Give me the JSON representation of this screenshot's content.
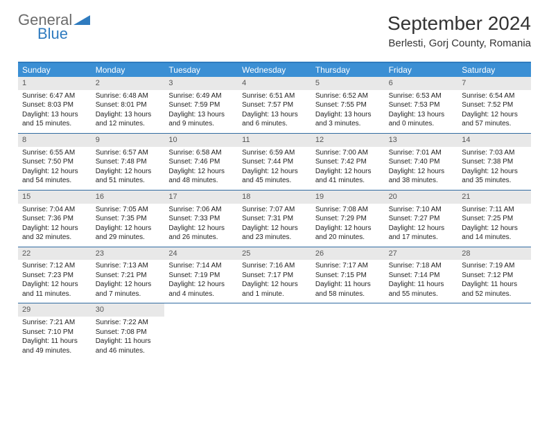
{
  "logo": {
    "general": "General",
    "blue": "Blue",
    "tri_color": "#2f7bbf"
  },
  "title": "September 2024",
  "location": "Berlesti, Gorj County, Romania",
  "colors": {
    "header_bar": "#3b8fd4",
    "top_border": "#2f7bbf",
    "row_border": "#2f6aa0",
    "daynum_bg": "#e8e8e8",
    "text": "#222222"
  },
  "day_names": [
    "Sunday",
    "Monday",
    "Tuesday",
    "Wednesday",
    "Thursday",
    "Friday",
    "Saturday"
  ],
  "weeks": [
    [
      {
        "n": "1",
        "sr": "6:47 AM",
        "ss": "8:03 PM",
        "dl": "13 hours and 15 minutes."
      },
      {
        "n": "2",
        "sr": "6:48 AM",
        "ss": "8:01 PM",
        "dl": "13 hours and 12 minutes."
      },
      {
        "n": "3",
        "sr": "6:49 AM",
        "ss": "7:59 PM",
        "dl": "13 hours and 9 minutes."
      },
      {
        "n": "4",
        "sr": "6:51 AM",
        "ss": "7:57 PM",
        "dl": "13 hours and 6 minutes."
      },
      {
        "n": "5",
        "sr": "6:52 AM",
        "ss": "7:55 PM",
        "dl": "13 hours and 3 minutes."
      },
      {
        "n": "6",
        "sr": "6:53 AM",
        "ss": "7:53 PM",
        "dl": "13 hours and 0 minutes."
      },
      {
        "n": "7",
        "sr": "6:54 AM",
        "ss": "7:52 PM",
        "dl": "12 hours and 57 minutes."
      }
    ],
    [
      {
        "n": "8",
        "sr": "6:55 AM",
        "ss": "7:50 PM",
        "dl": "12 hours and 54 minutes."
      },
      {
        "n": "9",
        "sr": "6:57 AM",
        "ss": "7:48 PM",
        "dl": "12 hours and 51 minutes."
      },
      {
        "n": "10",
        "sr": "6:58 AM",
        "ss": "7:46 PM",
        "dl": "12 hours and 48 minutes."
      },
      {
        "n": "11",
        "sr": "6:59 AM",
        "ss": "7:44 PM",
        "dl": "12 hours and 45 minutes."
      },
      {
        "n": "12",
        "sr": "7:00 AM",
        "ss": "7:42 PM",
        "dl": "12 hours and 41 minutes."
      },
      {
        "n": "13",
        "sr": "7:01 AM",
        "ss": "7:40 PM",
        "dl": "12 hours and 38 minutes."
      },
      {
        "n": "14",
        "sr": "7:03 AM",
        "ss": "7:38 PM",
        "dl": "12 hours and 35 minutes."
      }
    ],
    [
      {
        "n": "15",
        "sr": "7:04 AM",
        "ss": "7:36 PM",
        "dl": "12 hours and 32 minutes."
      },
      {
        "n": "16",
        "sr": "7:05 AM",
        "ss": "7:35 PM",
        "dl": "12 hours and 29 minutes."
      },
      {
        "n": "17",
        "sr": "7:06 AM",
        "ss": "7:33 PM",
        "dl": "12 hours and 26 minutes."
      },
      {
        "n": "18",
        "sr": "7:07 AM",
        "ss": "7:31 PM",
        "dl": "12 hours and 23 minutes."
      },
      {
        "n": "19",
        "sr": "7:08 AM",
        "ss": "7:29 PM",
        "dl": "12 hours and 20 minutes."
      },
      {
        "n": "20",
        "sr": "7:10 AM",
        "ss": "7:27 PM",
        "dl": "12 hours and 17 minutes."
      },
      {
        "n": "21",
        "sr": "7:11 AM",
        "ss": "7:25 PM",
        "dl": "12 hours and 14 minutes."
      }
    ],
    [
      {
        "n": "22",
        "sr": "7:12 AM",
        "ss": "7:23 PM",
        "dl": "12 hours and 11 minutes."
      },
      {
        "n": "23",
        "sr": "7:13 AM",
        "ss": "7:21 PM",
        "dl": "12 hours and 7 minutes."
      },
      {
        "n": "24",
        "sr": "7:14 AM",
        "ss": "7:19 PM",
        "dl": "12 hours and 4 minutes."
      },
      {
        "n": "25",
        "sr": "7:16 AM",
        "ss": "7:17 PM",
        "dl": "12 hours and 1 minute."
      },
      {
        "n": "26",
        "sr": "7:17 AM",
        "ss": "7:15 PM",
        "dl": "11 hours and 58 minutes."
      },
      {
        "n": "27",
        "sr": "7:18 AM",
        "ss": "7:14 PM",
        "dl": "11 hours and 55 minutes."
      },
      {
        "n": "28",
        "sr": "7:19 AM",
        "ss": "7:12 PM",
        "dl": "11 hours and 52 minutes."
      }
    ],
    [
      {
        "n": "29",
        "sr": "7:21 AM",
        "ss": "7:10 PM",
        "dl": "11 hours and 49 minutes."
      },
      {
        "n": "30",
        "sr": "7:22 AM",
        "ss": "7:08 PM",
        "dl": "11 hours and 46 minutes."
      },
      null,
      null,
      null,
      null,
      null
    ]
  ],
  "labels": {
    "sunrise": "Sunrise:",
    "sunset": "Sunset:",
    "daylight": "Daylight:"
  }
}
